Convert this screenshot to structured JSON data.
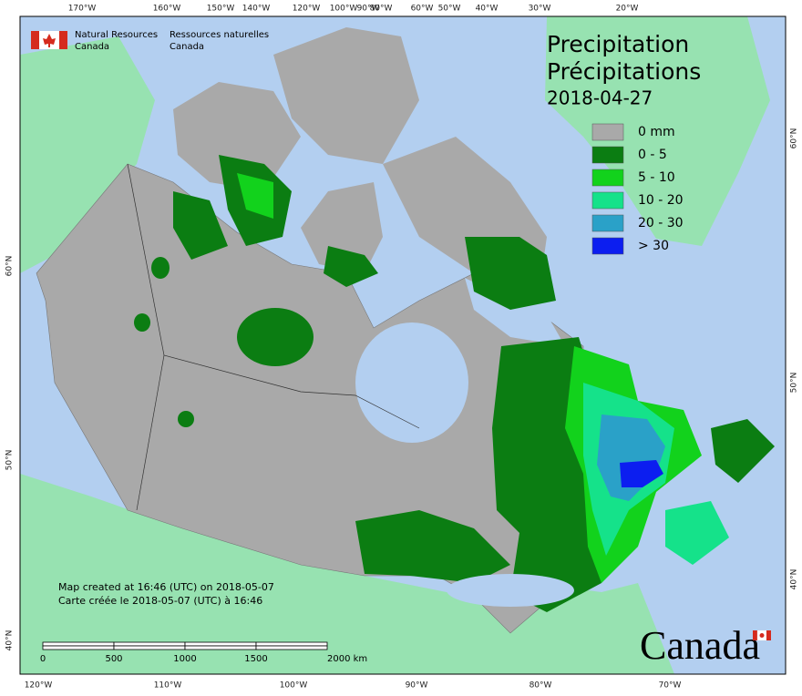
{
  "header": {
    "agency_en": "Natural Resources",
    "country_en": "Canada",
    "agency_fr": "Ressources naturelles",
    "country_fr": "Canada"
  },
  "title": {
    "en": "Precipitation",
    "fr": "Précipitations",
    "date": "2018-04-27"
  },
  "legend": {
    "items": [
      {
        "label": "0 mm",
        "color": "#a9a9a9"
      },
      {
        "label": "0 - 5",
        "color": "#0b7d12"
      },
      {
        "label": "5 - 10",
        "color": "#12d21c"
      },
      {
        "label": "10 - 20",
        "color": "#15e28a"
      },
      {
        "label": "20 - 30",
        "color": "#2aa1c8"
      },
      {
        "label": "> 30",
        "color": "#0c1ef0"
      }
    ]
  },
  "graticule": {
    "top": [
      "170°W",
      "160°W",
      "150°W",
      "140°W",
      "120°W",
      "100°W",
      "90°W",
      "80°W",
      "60°W",
      "50°W",
      "40°W",
      "30°W",
      "20°W"
    ],
    "bottom": [
      "120°W",
      "110°W",
      "100°W",
      "90°W",
      "80°W",
      "70°W"
    ],
    "left": [
      "60°N",
      "50°N",
      "40°N"
    ],
    "right": [
      "60°N",
      "50°N",
      "40°N"
    ]
  },
  "footer": {
    "created_en": "Map created at 16:46 (UTC) on 2018-05-07",
    "created_fr": "Carte créée le 2018-05-07 (UTC) à 16:46"
  },
  "scale_bar": {
    "labels": [
      "0",
      "500",
      "1000",
      "1500",
      "2000 km"
    ]
  },
  "wordmark": "Canada"
}
